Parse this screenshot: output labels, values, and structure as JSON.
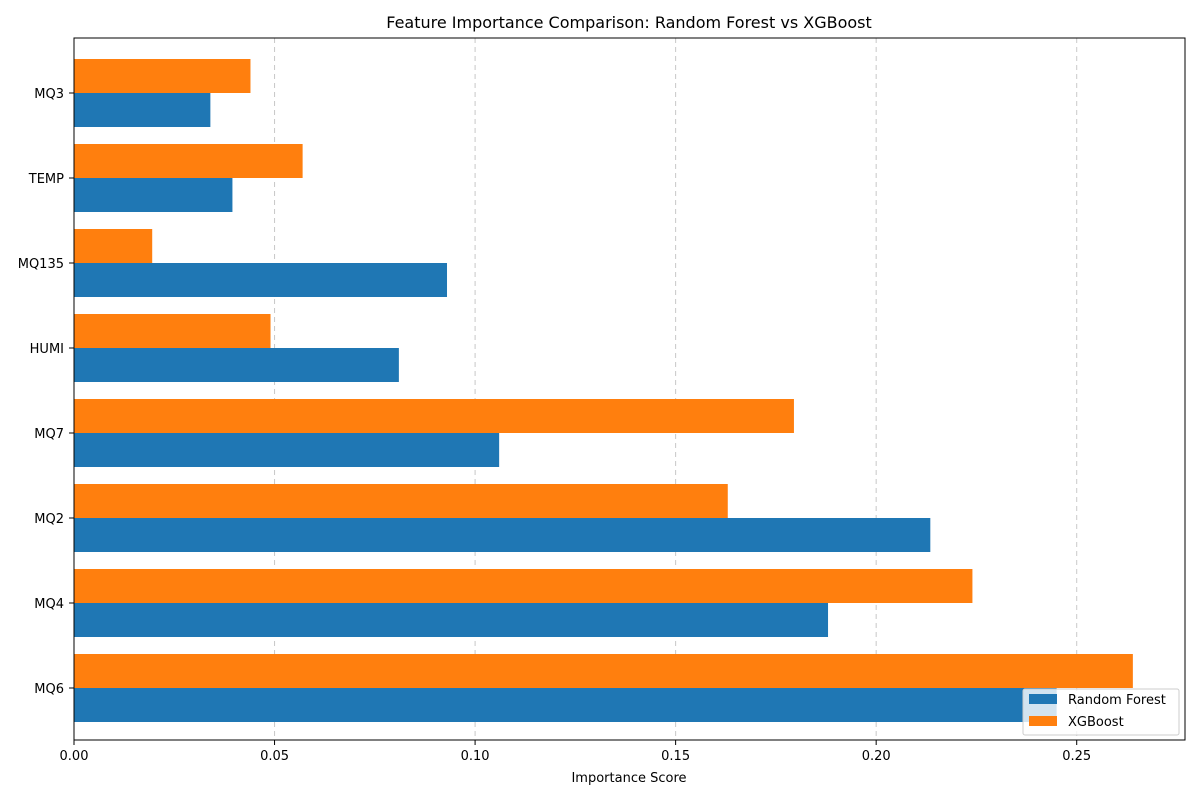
{
  "chart_data": {
    "type": "bar",
    "orientation": "horizontal",
    "title": "Feature Importance Comparison: Random Forest vs XGBoost",
    "xlabel": "Importance Score",
    "ylabel": "",
    "categories": [
      "MQ6",
      "MQ4",
      "MQ2",
      "MQ7",
      "HUMI",
      "MQ135",
      "TEMP",
      "MQ3"
    ],
    "series": [
      {
        "name": "Random Forest",
        "color": "#1f77b4",
        "values": [
          0.245,
          0.188,
          0.2135,
          0.106,
          0.081,
          0.093,
          0.0395,
          0.034
        ]
      },
      {
        "name": "XGBoost",
        "color": "#ff7f0e",
        "values": [
          0.264,
          0.224,
          0.163,
          0.1795,
          0.049,
          0.0195,
          0.057,
          0.044
        ]
      }
    ],
    "xlim": [
      0,
      0.277
    ],
    "xticks": [
      "0.00",
      "0.05",
      "0.10",
      "0.15",
      "0.20",
      "0.25"
    ],
    "xtick_values": [
      0,
      0.05,
      0.1,
      0.15,
      0.2,
      0.25
    ],
    "grid": "x-axis dashed",
    "legend_position": "lower-right"
  }
}
